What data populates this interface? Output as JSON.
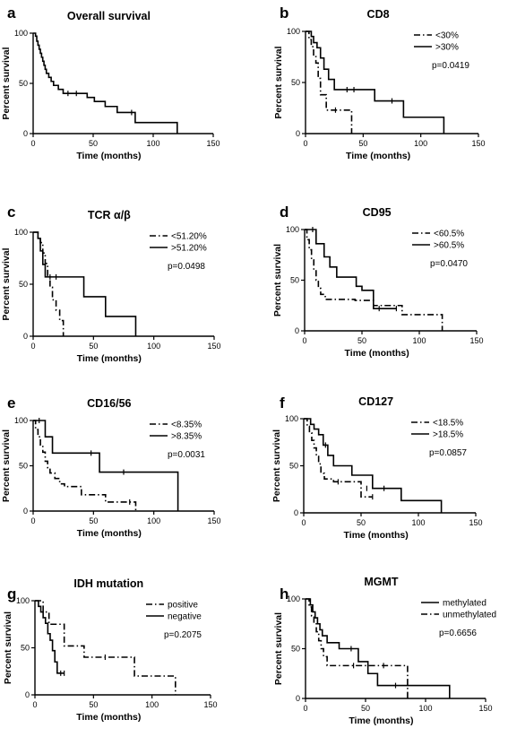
{
  "figure": {
    "background": "#ffffff",
    "ink": "#000000"
  },
  "chart_data": [
    {
      "panel": "a",
      "type": "line",
      "title": "Overall survival",
      "xlabel": "Time (months)",
      "ylabel": "Percent survival",
      "xlim": [
        0,
        150
      ],
      "ylim": [
        0,
        100
      ],
      "xticks": [
        "0",
        "50",
        "100",
        "150"
      ],
      "yticks": [
        "0",
        "50",
        "100"
      ],
      "legend": [],
      "pvalue": "",
      "series": [
        {
          "style": "solid",
          "steps": [
            [
              0,
              100
            ],
            [
              2,
              97
            ],
            [
              3,
              92
            ],
            [
              4,
              88
            ],
            [
              5,
              84
            ],
            [
              6,
              80
            ],
            [
              7,
              76
            ],
            [
              8,
              72
            ],
            [
              9,
              68
            ],
            [
              10,
              64
            ],
            [
              11,
              60
            ],
            [
              13,
              56
            ],
            [
              15,
              52
            ],
            [
              17,
              48
            ],
            [
              21,
              44
            ],
            [
              25,
              40
            ],
            [
              45,
              36
            ],
            [
              51,
              32
            ],
            [
              60,
              27
            ],
            [
              70,
              21
            ],
            [
              85,
              11
            ],
            [
              120,
              0
            ]
          ],
          "censors": [
            [
              29,
              40
            ],
            [
              36,
              40
            ],
            [
              82,
              21
            ]
          ]
        }
      ]
    },
    {
      "panel": "b",
      "type": "line",
      "title": "CD8",
      "xlabel": "Time (months)",
      "ylabel": "Percent survival",
      "xlim": [
        0,
        150
      ],
      "ylim": [
        0,
        100
      ],
      "xticks": [
        "0",
        "50",
        "100",
        "150"
      ],
      "yticks": [
        "0",
        "50",
        "100"
      ],
      "legend": [
        {
          "label": "<30%",
          "style": "dashdot"
        },
        {
          "label": ">30%",
          "style": "solid"
        }
      ],
      "pvalue": "p=0.0419",
      "series": [
        {
          "style": "dashdot",
          "steps": [
            [
              0,
              100
            ],
            [
              3,
              92
            ],
            [
              5,
              85
            ],
            [
              7,
              77
            ],
            [
              9,
              69
            ],
            [
              11,
              54
            ],
            [
              13,
              38
            ],
            [
              18,
              23
            ],
            [
              40,
              0
            ]
          ],
          "censors": [
            [
              26,
              23
            ]
          ]
        },
        {
          "style": "solid",
          "steps": [
            [
              0,
              100
            ],
            [
              5,
              95
            ],
            [
              7,
              89
            ],
            [
              10,
              84
            ],
            [
              13,
              74
            ],
            [
              16,
              63
            ],
            [
              20,
              53
            ],
            [
              25,
              43
            ],
            [
              60,
              32
            ],
            [
              85,
              16
            ],
            [
              120,
              0
            ]
          ],
          "censors": [
            [
              36,
              43
            ],
            [
              42,
              43
            ],
            [
              75,
              32
            ]
          ]
        }
      ]
    },
    {
      "panel": "c",
      "type": "line",
      "title": "TCR α/β",
      "xlabel": "Time (months)",
      "ylabel": "Percent survival",
      "xlim": [
        0,
        150
      ],
      "ylim": [
        0,
        100
      ],
      "xticks": [
        "0",
        "50",
        "100",
        "150"
      ],
      "yticks": [
        "0",
        "50",
        "100"
      ],
      "legend": [
        {
          "label": "<51.20%",
          "style": "dashdot"
        },
        {
          "label": ">51.20%",
          "style": "solid"
        }
      ],
      "pvalue": "p=0.0498",
      "series": [
        {
          "style": "dashdot",
          "steps": [
            [
              0,
              100
            ],
            [
              4,
              95
            ],
            [
              6,
              90
            ],
            [
              8,
              80
            ],
            [
              10,
              70
            ],
            [
              12,
              58
            ],
            [
              14,
              47
            ],
            [
              16,
              35
            ],
            [
              19,
              25
            ],
            [
              22,
              15
            ],
            [
              25,
              0
            ]
          ],
          "censors": []
        },
        {
          "style": "solid",
          "steps": [
            [
              0,
              100
            ],
            [
              4,
              94
            ],
            [
              6,
              82
            ],
            [
              8,
              69
            ],
            [
              10,
              57
            ],
            [
              42,
              38
            ],
            [
              60,
              19
            ],
            [
              85,
              0
            ]
          ],
          "censors": [
            [
              14,
              57
            ],
            [
              19,
              57
            ]
          ]
        }
      ]
    },
    {
      "panel": "d",
      "type": "line",
      "title": "CD95",
      "xlabel": "Time (months)",
      "ylabel": "Percent survival",
      "xlim": [
        0,
        150
      ],
      "ylim": [
        0,
        100
      ],
      "xticks": [
        "0",
        "50",
        "100",
        "150"
      ],
      "yticks": [
        "0",
        "50",
        "100"
      ],
      "legend": [
        {
          "label": "<60.5%",
          "style": "dashdot"
        },
        {
          "label": ">60.5%",
          "style": "solid"
        }
      ],
      "pvalue": "p=0.0470",
      "series": [
        {
          "style": "dashdot",
          "steps": [
            [
              0,
              100
            ],
            [
              2,
              90
            ],
            [
              4,
              80
            ],
            [
              6,
              70
            ],
            [
              8,
              60
            ],
            [
              10,
              50
            ],
            [
              12,
              42
            ],
            [
              14,
              36
            ],
            [
              18,
              31
            ],
            [
              44,
              30
            ],
            [
              60,
              25
            ],
            [
              85,
              16
            ],
            [
              120,
              0
            ]
          ],
          "censors": []
        },
        {
          "style": "solid",
          "steps": [
            [
              0,
              100
            ],
            [
              10,
              86
            ],
            [
              17,
              73
            ],
            [
              22,
              63
            ],
            [
              28,
              53
            ],
            [
              45,
              44
            ],
            [
              50,
              40
            ],
            [
              60,
              22
            ],
            [
              80,
              22
            ]
          ],
          "censors": [
            [
              7,
              100
            ],
            [
              65,
              22
            ],
            [
              80,
              22
            ]
          ]
        }
      ]
    },
    {
      "panel": "e",
      "type": "line",
      "title": "CD16/56",
      "xlabel": "Time (months)",
      "ylabel": "Percent survival",
      "xlim": [
        0,
        150
      ],
      "ylim": [
        0,
        100
      ],
      "xticks": [
        "0",
        "50",
        "100",
        "150"
      ],
      "yticks": [
        "0",
        "50",
        "100"
      ],
      "legend": [
        {
          "label": "<8.35%",
          "style": "dashdot"
        },
        {
          "label": ">8.35%",
          "style": "solid"
        }
      ],
      "pvalue": "p=0.0031",
      "series": [
        {
          "style": "dashdot",
          "steps": [
            [
              0,
              100
            ],
            [
              2,
              90
            ],
            [
              4,
              82
            ],
            [
              6,
              73
            ],
            [
              8,
              65
            ],
            [
              10,
              55
            ],
            [
              12,
              48
            ],
            [
              14,
              42
            ],
            [
              18,
              36
            ],
            [
              22,
              30
            ],
            [
              26,
              27
            ],
            [
              40,
              18
            ],
            [
              60,
              10
            ],
            [
              85,
              0
            ]
          ],
          "censors": [
            [
              80,
              10
            ]
          ]
        },
        {
          "style": "solid",
          "steps": [
            [
              0,
              100
            ],
            [
              10,
              82
            ],
            [
              16,
              64
            ],
            [
              55,
              43
            ],
            [
              120,
              0
            ]
          ],
          "censors": [
            [
              5,
              100
            ],
            [
              48,
              64
            ],
            [
              75,
              43
            ]
          ]
        }
      ]
    },
    {
      "panel": "f",
      "type": "line",
      "title": "CD127",
      "xlabel": "Time (months)",
      "ylabel": "Percent survival",
      "xlim": [
        0,
        150
      ],
      "ylim": [
        0,
        100
      ],
      "xticks": [
        "0",
        "50",
        "100",
        "150"
      ],
      "yticks": [
        "0",
        "50",
        "100"
      ],
      "legend": [
        {
          "label": "<18.5%",
          "style": "dashdot"
        },
        {
          "label": ">18.5%",
          "style": "solid"
        }
      ],
      "pvalue": "p=0.0857",
      "series": [
        {
          "style": "dashdot",
          "steps": [
            [
              0,
              100
            ],
            [
              3,
              92
            ],
            [
              5,
              85
            ],
            [
              7,
              77
            ],
            [
              9,
              69
            ],
            [
              11,
              60
            ],
            [
              13,
              52
            ],
            [
              15,
              42
            ],
            [
              18,
              36
            ],
            [
              26,
              33
            ],
            [
              50,
              17
            ],
            [
              60,
              17
            ]
          ],
          "censors": [
            [
              30,
              33
            ],
            [
              60,
              17
            ]
          ]
        },
        {
          "style": "solid",
          "steps": [
            [
              0,
              100
            ],
            [
              6,
              94
            ],
            [
              9,
              89
            ],
            [
              13,
              83
            ],
            [
              17,
              72
            ],
            [
              21,
              61
            ],
            [
              26,
              50
            ],
            [
              42,
              40
            ],
            [
              60,
              26
            ],
            [
              85,
              13
            ],
            [
              120,
              0
            ]
          ],
          "censors": [
            [
              19,
              72
            ],
            [
              55,
              26
            ],
            [
              70,
              26
            ]
          ]
        }
      ]
    },
    {
      "panel": "g",
      "type": "line",
      "title": "IDH mutation",
      "xlabel": "Time (months)",
      "ylabel": "Percent survival",
      "xlim": [
        0,
        150
      ],
      "ylim": [
        0,
        100
      ],
      "xticks": [
        "0",
        "50",
        "100",
        "150"
      ],
      "yticks": [
        "0",
        "50",
        "100"
      ],
      "legend": [
        {
          "label": "positive",
          "style": "dashdot"
        },
        {
          "label": "negative",
          "style": "solid"
        }
      ],
      "pvalue": "p=0.2075",
      "series": [
        {
          "style": "dashdot",
          "steps": [
            [
              0,
              100
            ],
            [
              7,
              88
            ],
            [
              12,
              75
            ],
            [
              25,
              52
            ],
            [
              42,
              40
            ],
            [
              85,
              20
            ],
            [
              120,
              0
            ]
          ],
          "censors": [
            [
              60,
              40
            ]
          ]
        },
        {
          "style": "solid",
          "steps": [
            [
              0,
              100
            ],
            [
              3,
              94
            ],
            [
              5,
              88
            ],
            [
              7,
              82
            ],
            [
              9,
              76
            ],
            [
              11,
              65
            ],
            [
              13,
              58
            ],
            [
              15,
              47
            ],
            [
              17,
              35
            ],
            [
              19,
              23
            ],
            [
              25,
              23
            ]
          ],
          "censors": [
            [
              22,
              23
            ],
            [
              25,
              23
            ]
          ]
        }
      ]
    },
    {
      "panel": "h",
      "type": "line",
      "title": "MGMT",
      "xlabel": "Time (months)",
      "ylabel": "Percent survival",
      "xlim": [
        0,
        150
      ],
      "ylim": [
        0,
        100
      ],
      "xticks": [
        "0",
        "50",
        "100",
        "150"
      ],
      "yticks": [
        "0",
        "50",
        "100"
      ],
      "legend": [
        {
          "label": "methylated",
          "style": "solid"
        },
        {
          "label": "unmethylated",
          "style": "dashdot"
        }
      ],
      "pvalue": "p=0.6656",
      "series": [
        {
          "style": "solid",
          "steps": [
            [
              0,
              100
            ],
            [
              4,
              94
            ],
            [
              6,
              87
            ],
            [
              8,
              81
            ],
            [
              10,
              75
            ],
            [
              12,
              69
            ],
            [
              14,
              63
            ],
            [
              18,
              56
            ],
            [
              28,
              50
            ],
            [
              44,
              37
            ],
            [
              52,
              25
            ],
            [
              60,
              13
            ],
            [
              120,
              0
            ]
          ],
          "censors": [
            [
              38,
              50
            ],
            [
              75,
              13
            ]
          ]
        },
        {
          "style": "dashdot",
          "steps": [
            [
              0,
              100
            ],
            [
              3,
              92
            ],
            [
              5,
              83
            ],
            [
              7,
              75
            ],
            [
              9,
              67
            ],
            [
              11,
              58
            ],
            [
              13,
              50
            ],
            [
              15,
              42
            ],
            [
              18,
              33
            ],
            [
              85,
              0
            ]
          ],
          "censors": [
            [
              40,
              33
            ],
            [
              65,
              33
            ]
          ]
        }
      ]
    }
  ]
}
